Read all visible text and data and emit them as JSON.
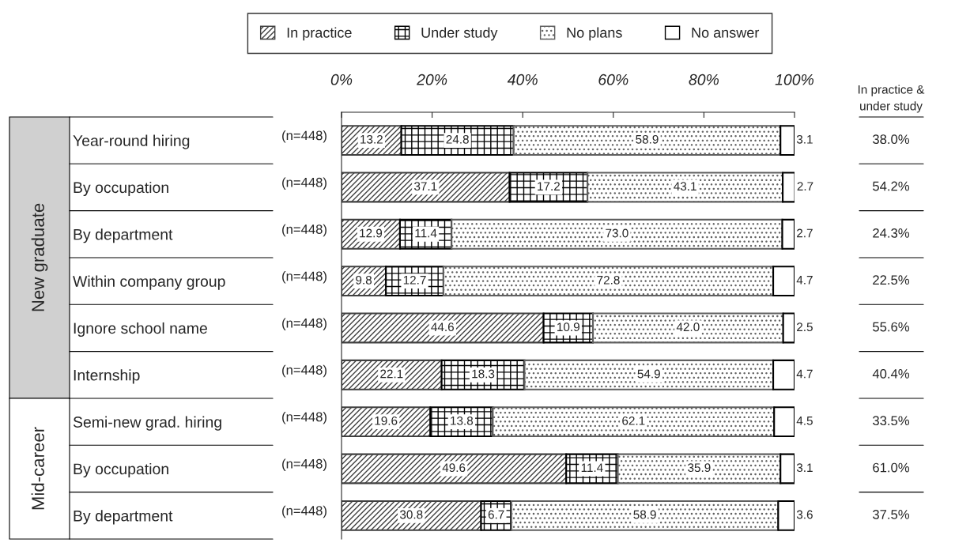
{
  "chart_data": {
    "type": "bar",
    "orientation": "horizontal",
    "stacked": true,
    "data_labels": true,
    "legend": "top",
    "grid": false,
    "categories": [
      "Year-round hiring",
      "By occupation",
      "By department",
      "Within company group",
      "Ignore school name",
      "Internship",
      "Semi-new grad. hiring",
      "By occupation",
      "By department"
    ],
    "series": [
      {
        "name": "In practice",
        "color": "#404040",
        "values": [
          13.2,
          37.1,
          12.9,
          9.8,
          44.6,
          22.1,
          19.6,
          49.6,
          30.8
        ]
      },
      {
        "name": "Under study",
        "color": "#000000",
        "values": [
          24.8,
          17.2,
          11.4,
          12.7,
          10.9,
          18.3,
          13.8,
          11.4,
          6.7
        ]
      },
      {
        "name": "No plans",
        "color": "#606060",
        "values": [
          58.9,
          43.1,
          73.0,
          72.8,
          42.0,
          54.9,
          62.1,
          35.9,
          58.9
        ],
        "value_labels": [
          "58.9",
          "43.1",
          "73.0",
          "72.8",
          "42.0",
          "54.9",
          "62.1",
          "35.9",
          "58.9"
        ]
      },
      {
        "name": "No answer",
        "color": "#000000",
        "values": [
          3.1,
          2.7,
          2.7,
          4.7,
          2.5,
          4.7,
          4.5,
          3.1,
          3.6
        ]
      }
    ],
    "xlim": [
      0,
      100
    ],
    "xticks": [
      {
        "value": 0,
        "label": "0%"
      },
      {
        "value": 20,
        "label": "20%"
      },
      {
        "value": 40,
        "label": "40%"
      },
      {
        "value": 60,
        "label": "60%"
      },
      {
        "value": 80,
        "label": "80%"
      },
      {
        "value": 100,
        "label": "100%"
      }
    ],
    "annotations": [
      "(n=448)",
      "(n=448)",
      "(n=448)",
      "(n=448)",
      "(n=448)",
      "(n=448)",
      "(n=448)",
      "(n=448)",
      "(n=448)",
      "In practice &\nunder study",
      "38.0%",
      "54.2%",
      "24.3%",
      "22.5%",
      "55.6%",
      "40.4%",
      "33.5%",
      "61.0%",
      "37.5%",
      "New graduate",
      "Mid-career"
    ]
  }
}
